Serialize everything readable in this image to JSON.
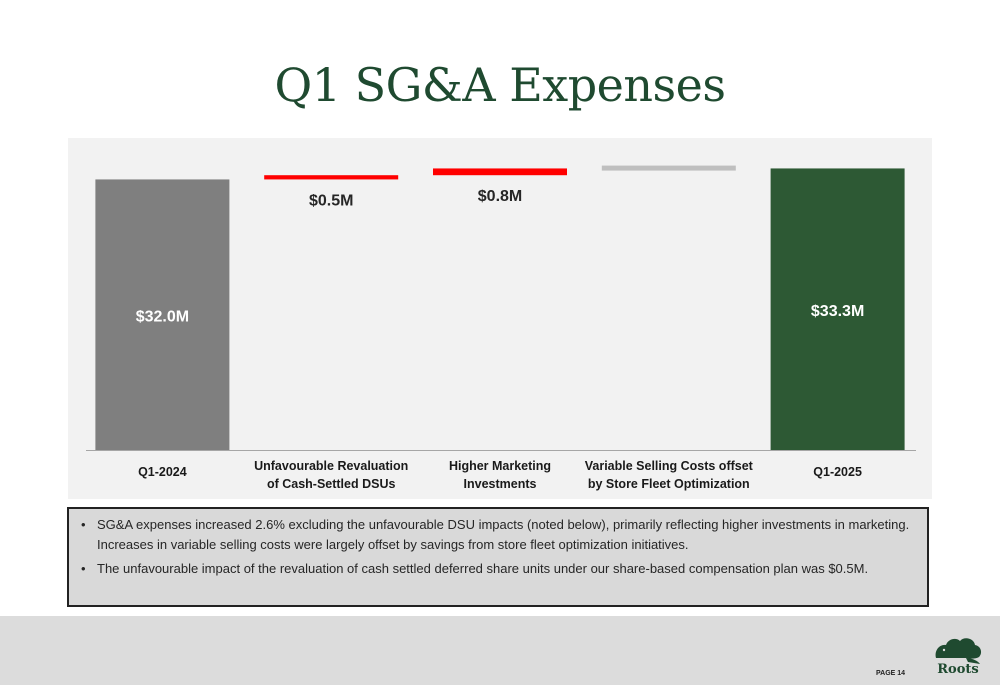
{
  "slide": {
    "title": "Q1 SG&A Expenses",
    "page_label": "PAGE 14",
    "logo_text": "Roots"
  },
  "notes": [
    "SG&A expenses increased 2.6% excluding the unfavourable DSU impacts (noted below), primarily reflecting higher investments in marketing. Increases in variable selling costs were largely offset by savings from store fleet optimization initiatives.",
    "The unfavourable impact of the revaluation of cash settled deferred share units under our share-based compensation plan was $0.5M."
  ],
  "colors": {
    "start_bar": "#7f7f7f",
    "increase_bar": "#ff0000",
    "neutral_bar": "#bfbfbf",
    "end_bar": "#2d5934",
    "title": "#1f4a30"
  },
  "chart_data": {
    "type": "bar",
    "subtype": "waterfall",
    "title": "",
    "xlabel": "",
    "ylabel": "",
    "grid": false,
    "legend": "none",
    "ylim": [
      0,
      36.9
    ],
    "categories": [
      [
        "Q1-2024"
      ],
      [
        "Unfavourable Revaluation",
        "of Cash-Settled DSUs"
      ],
      [
        "Higher Marketing",
        "Investments"
      ],
      [
        "Variable Selling Costs offset",
        "by Store Fleet Optimization"
      ],
      [
        "Q1-2025"
      ]
    ],
    "bars": [
      {
        "kind": "total",
        "start": 0,
        "end": 32.0,
        "label": "$32.0M",
        "color": "start_bar",
        "label_pos": "inside"
      },
      {
        "kind": "increase",
        "start": 32.0,
        "end": 32.5,
        "label": "$0.5M",
        "color": "increase_bar",
        "label_pos": "below"
      },
      {
        "kind": "increase",
        "start": 32.5,
        "end": 33.3,
        "label": "$0.8M",
        "color": "increase_bar",
        "label_pos": "below"
      },
      {
        "kind": "neutral",
        "start": 33.3,
        "end": 33.4,
        "label": "",
        "color": "neutral_bar",
        "label_pos": "none"
      },
      {
        "kind": "total",
        "start": 0,
        "end": 33.3,
        "label": "$33.3M",
        "color": "end_bar",
        "label_pos": "inside"
      }
    ]
  }
}
